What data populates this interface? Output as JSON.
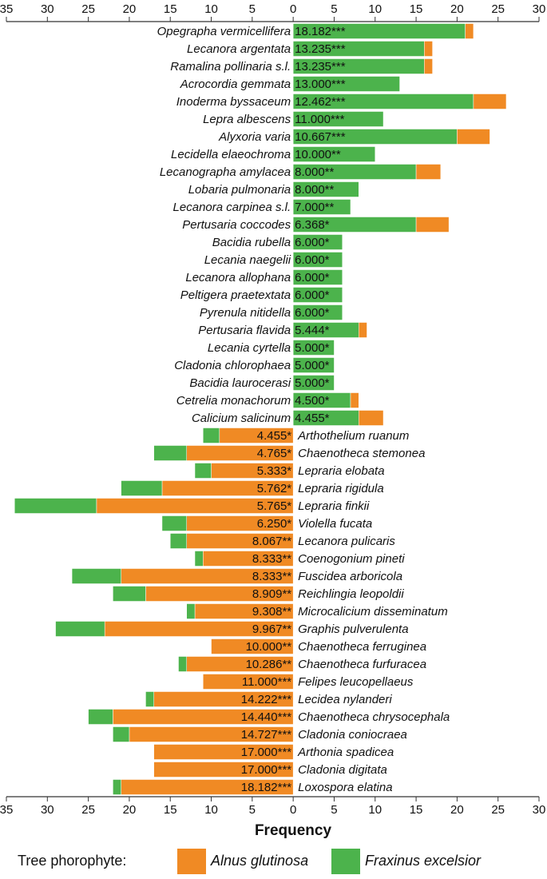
{
  "chart_data": {
    "type": "diverging-stacked-bar",
    "x_label": "Frequency",
    "legend_title": "Tree phorophyte:",
    "categories": [
      "Opegrapha vermicellifera",
      "Lecanora argentata",
      "Ramalina pollinaria s.l.",
      "Acrocordia gemmata",
      "Inoderma byssaceum",
      "Lepra albescens",
      "Alyxoria varia",
      "Lecidella elaeochroma",
      "Lecanographa amylacea",
      "Lobaria pulmonaria",
      "Lecanora carpinea s.l.",
      "Pertusaria coccodes",
      "Bacidia rubella",
      "Lecania naegelii",
      "Lecanora allophana",
      "Peltigera praetextata",
      "Pyrenula nitidella",
      "Pertusaria flavida",
      "Lecania cyrtella",
      "Cladonia chlorophaea",
      "Bacidia laurocerasi",
      "Cetrelia monachorum",
      "Calicium salicinum",
      "Arthothelium ruanum",
      "Chaenotheca stemonea",
      "Lepraria elobata",
      "Lepraria rigidula",
      "Lepraria finkii",
      "Violella fucata",
      "Lecanora pulicaris",
      "Coenogonium pineti",
      "Fuscidea arboricola",
      "Reichlingia leopoldii",
      "Microcalicium disseminatum",
      "Graphis pulverulenta",
      "Chaenotheca ferruginea",
      "Chaenotheca furfuracea",
      "Felipes leucopellaeus",
      "Lecidea nylanderi",
      "Chaenotheca chrysocephala",
      "Cladonia coniocraea",
      "Arthonia spadicea",
      "Cladonia digitata",
      "Loxospora elatina"
    ],
    "indicator_labels": [
      "18.182***",
      "13.235***",
      "13.235***",
      "13.000***",
      "12.462***",
      "11.000***",
      "10.667***",
      "10.000**",
      "8.000**",
      "8.000**",
      "7.000**",
      "6.368*",
      "6.000*",
      "6.000*",
      "6.000*",
      "6.000*",
      "6.000*",
      "5.444*",
      "5.000*",
      "5.000*",
      "5.000*",
      "4.500*",
      "4.455*",
      "4.455*",
      "4.765*",
      "5.333*",
      "5.762*",
      "5.765*",
      "6.250*",
      "8.067**",
      "8.333**",
      "8.333**",
      "8.909**",
      "9.308**",
      "9.967**",
      "10.000**",
      "10.286**",
      "11.000***",
      "14.222***",
      "14.440***",
      "14.727***",
      "17.000***",
      "17.000***",
      "18.182***"
    ],
    "series": [
      {
        "name": "Alnus glutinosa",
        "color": "#f08a24",
        "values": [
          1,
          1,
          1,
          0,
          4,
          0,
          4,
          0,
          3,
          0,
          0,
          4,
          0,
          0,
          0,
          0,
          0,
          1,
          0,
          0,
          0,
          1,
          3,
          -9,
          -13,
          -10,
          -16,
          -24,
          -13,
          -13,
          -11,
          -21,
          -18,
          -12,
          -23,
          -10,
          -13,
          -11,
          -17,
          -22,
          -20,
          -17,
          -17,
          -21
        ]
      },
      {
        "name": "Fraxinus excelsior",
        "color": "#4cb34c",
        "values": [
          21,
          16,
          16,
          13,
          22,
          11,
          20,
          10,
          15,
          8,
          7,
          15,
          6,
          6,
          6,
          6,
          6,
          8,
          5,
          5,
          5,
          7,
          8,
          -2,
          -4,
          -2,
          -5,
          -10,
          -3,
          -2,
          -1,
          -6,
          -4,
          -1,
          -6,
          0,
          -1,
          0,
          -1,
          -3,
          -2,
          0,
          0,
          -1
        ]
      }
    ],
    "xlim": [
      -35,
      30
    ],
    "xticks": [
      {
        "value": -35,
        "label": "35"
      },
      {
        "value": -30,
        "label": "30"
      },
      {
        "value": -25,
        "label": "25"
      },
      {
        "value": -20,
        "label": "20"
      },
      {
        "value": -15,
        "label": "15"
      },
      {
        "value": -10,
        "label": "10"
      },
      {
        "value": -5,
        "label": "5"
      },
      0,
      5,
      10,
      15,
      20,
      25,
      30
    ]
  }
}
